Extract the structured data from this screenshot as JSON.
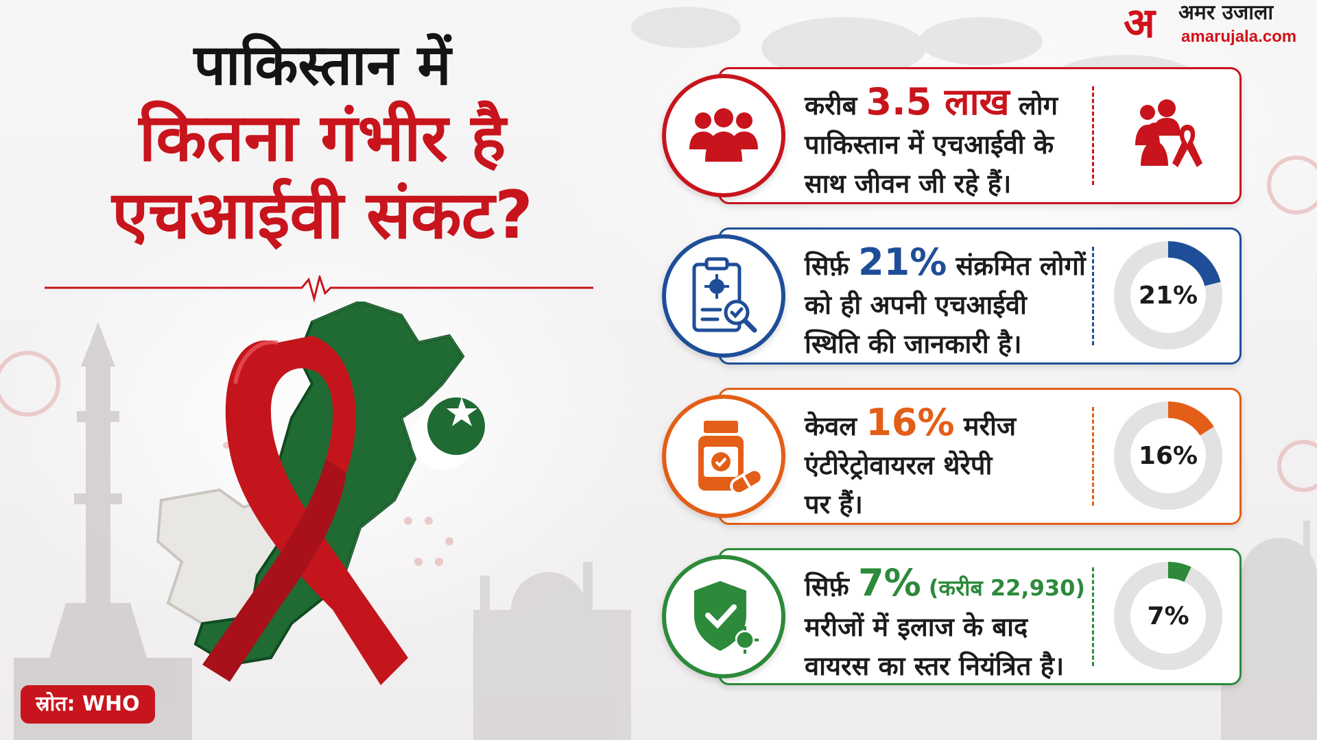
{
  "title": {
    "line1": "पाकिस्तान में",
    "line2": "कितना गंभीर है",
    "line3": "एचआईवी संकट?"
  },
  "brand": {
    "mark": "अ",
    "name": "अमर उजाला",
    "site": "amarujala.com"
  },
  "source": "स्रोत: WHO",
  "colors": {
    "red": "#c8141c",
    "blue": "#1f4e98",
    "orange": "#e35e16",
    "green": "#2c8a3a"
  },
  "cards": [
    {
      "icon": "people-group-icon",
      "right_icon": "people-ribbon-icon",
      "pre": "करीब ",
      "highlight": "3.5 लाख",
      "post": " लोग",
      "line2": "पाकिस्तान में एचआईवी के",
      "line3": "साथ जीवन जी रहे हैं।"
    },
    {
      "icon": "clipboard-virus-search-icon",
      "pre": "सिर्फ़ ",
      "highlight": "21%",
      "post": " संक्रमित लोगों",
      "line2": "को ही अपनी एचआईवी",
      "line3": "स्थिति की जानकारी है।",
      "donut_label": "21%",
      "donut_value": 21
    },
    {
      "icon": "medicine-bottle-icon",
      "pre": "केवल ",
      "highlight": "16%",
      "post": " मरीज",
      "line2": "एंटीरेट्रोवायरल थेरेपी",
      "line3": "पर हैं।",
      "donut_label": "16%",
      "donut_value": 16
    },
    {
      "icon": "shield-check-virus-icon",
      "pre": "सिर्फ़ ",
      "highlight": "7%",
      "note": " (करीब 22,930)",
      "line2": "मरीजों में इलाज के बाद",
      "line3": "वायरस का स्तर नियंत्रित है।",
      "donut_label": "7%",
      "donut_value": 7
    }
  ]
}
